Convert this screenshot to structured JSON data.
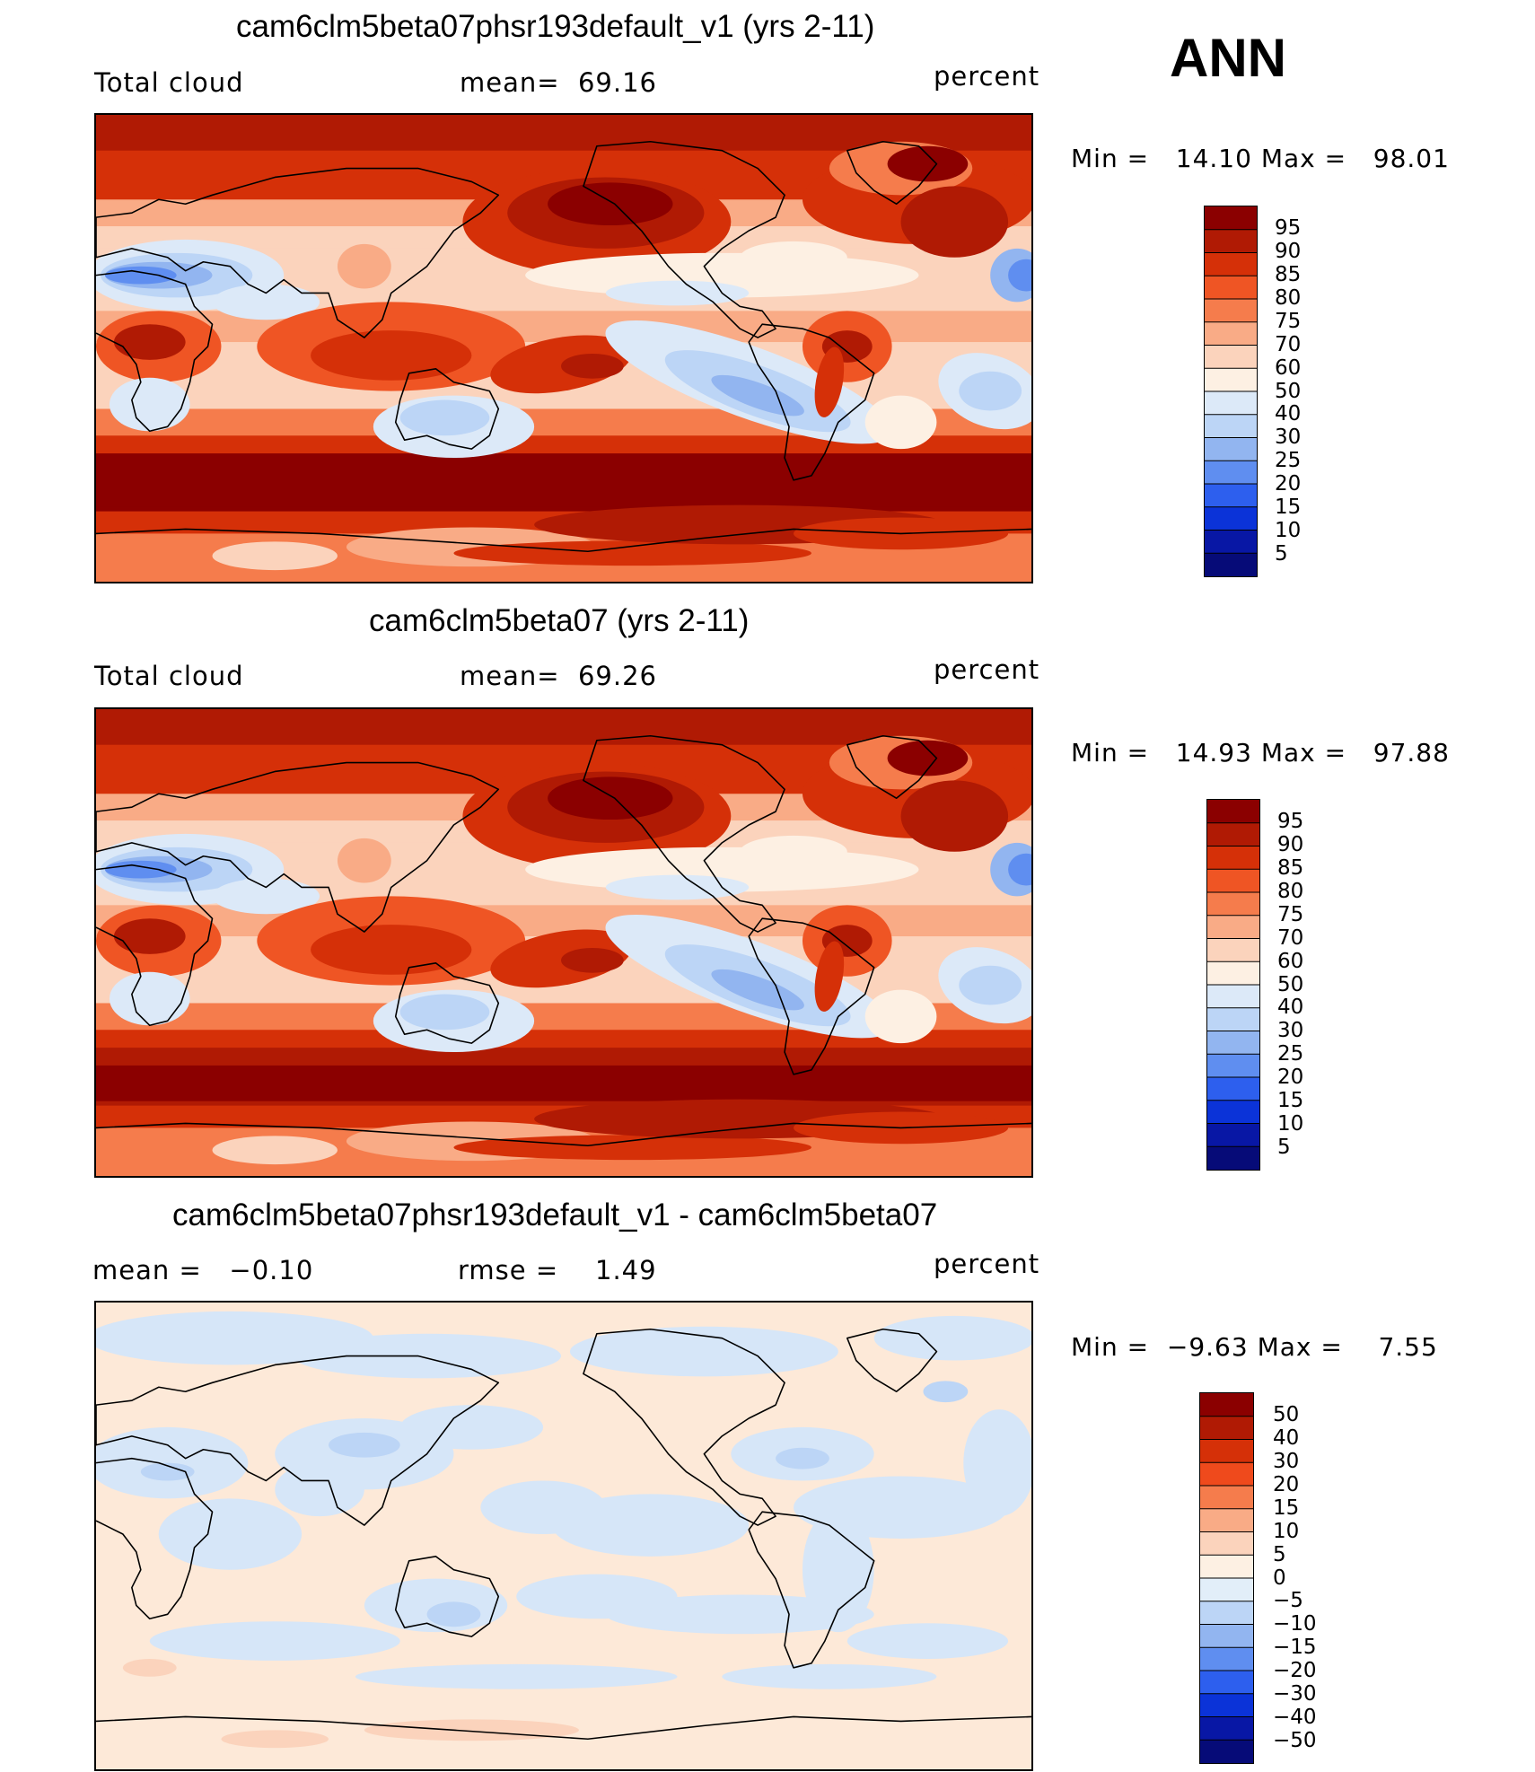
{
  "season": "ANN",
  "panels": [
    {
      "title": "cam6clm5beta07phsr193default_v1 (yrs 2-11)",
      "left_label": "Total cloud",
      "center_label": "mean=",
      "center_value": "69.16",
      "right_label": "percent",
      "min_label": "Min =",
      "min_value": "14.10",
      "max_label": "Max =",
      "max_value": "98.01",
      "colorbar_ticks": [
        "95",
        "90",
        "85",
        "80",
        "75",
        "70",
        "60",
        "50",
        "40",
        "30",
        "25",
        "20",
        "15",
        "10",
        "5"
      ],
      "colorbar_colors": [
        "#8b0000",
        "#b01a04",
        "#d53008",
        "#ef5524",
        "#f57c4c",
        "#f9ab86",
        "#fbd3bc",
        "#fdf0e3",
        "#dce9f8",
        "#bcd5f6",
        "#92b5f0",
        "#5f8ef0",
        "#2d5fee",
        "#0b33d8",
        "#0817a5",
        "#060b78"
      ]
    },
    {
      "title": "cam6clm5beta07 (yrs 2-11)",
      "left_label": "Total cloud",
      "center_label": "mean=",
      "center_value": "69.26",
      "right_label": "percent",
      "min_label": "Min =",
      "min_value": "14.93",
      "max_label": "Max =",
      "max_value": "97.88",
      "colorbar_ticks": [
        "95",
        "90",
        "85",
        "80",
        "75",
        "70",
        "60",
        "50",
        "40",
        "30",
        "25",
        "20",
        "15",
        "10",
        "5"
      ],
      "colorbar_colors": [
        "#8b0000",
        "#b01a04",
        "#d53008",
        "#ef5524",
        "#f57c4c",
        "#f9ab86",
        "#fbd3bc",
        "#fdf0e3",
        "#dce9f8",
        "#bcd5f6",
        "#92b5f0",
        "#5f8ef0",
        "#2d5fee",
        "#0b33d8",
        "#0817a5",
        "#060b78"
      ]
    },
    {
      "title": "cam6clm5beta07phsr193default_v1 - cam6clm5beta07",
      "left_label": "mean =",
      "left_value": "−0.10",
      "center_label": "rmse =",
      "center_value": "1.49",
      "right_label": "percent",
      "min_label": "Min =",
      "min_value": "−9.63",
      "max_label": "Max =",
      "max_value": "7.55",
      "colorbar_ticks": [
        "50",
        "40",
        "30",
        "20",
        "15",
        "10",
        "5",
        "0",
        "−5",
        "−10",
        "−15",
        "−20",
        "−30",
        "−40",
        "−50"
      ],
      "colorbar_colors": [
        "#8b0000",
        "#b01a04",
        "#d53008",
        "#ef4a1c",
        "#f57c4c",
        "#f9ab86",
        "#fbd3bc",
        "#fdf0e3",
        "#e2eef9",
        "#bcd5f6",
        "#92b5f0",
        "#5f8ef0",
        "#2d5fee",
        "#0b33d8",
        "#0817a5",
        "#060b78"
      ]
    }
  ]
}
